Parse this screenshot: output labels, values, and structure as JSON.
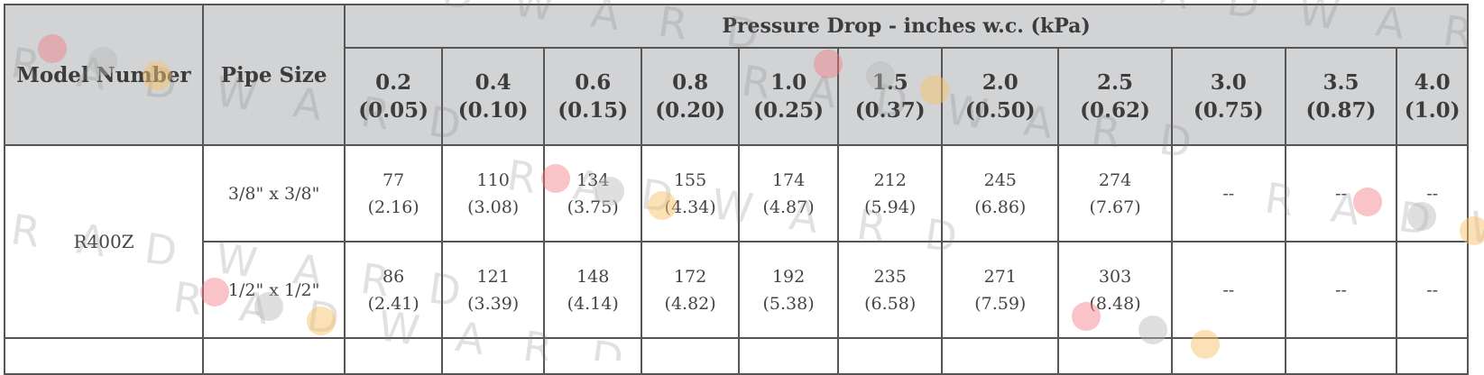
{
  "table": {
    "model_header": "Model Number",
    "pipe_header": "Pipe Size",
    "group_title": "Pressure Drop - inches w.c. (kPa)",
    "columns": [
      {
        "in": "0.2",
        "kpa": "(0.05)"
      },
      {
        "in": "0.4",
        "kpa": "(0.10)"
      },
      {
        "in": "0.6",
        "kpa": "(0.15)"
      },
      {
        "in": "0.8",
        "kpa": "(0.20)"
      },
      {
        "in": "1.0",
        "kpa": "(0.25)"
      },
      {
        "in": "1.5",
        "kpa": "(0.37)"
      },
      {
        "in": "2.0",
        "kpa": "(0.50)"
      },
      {
        "in": "2.5",
        "kpa": "(0.62)"
      },
      {
        "in": "3.0",
        "kpa": "(0.75)"
      },
      {
        "in": "3.5",
        "kpa": "(0.87)"
      },
      {
        "in": "4.0",
        "kpa": "(1.0)"
      }
    ],
    "rows": [
      {
        "model": "R400Z",
        "pipe": "3/8\" x 3/8\"",
        "cells": [
          {
            "a": "77",
            "b": "(2.16)"
          },
          {
            "a": "110",
            "b": "(3.08)"
          },
          {
            "a": "134",
            "b": "(3.75)"
          },
          {
            "a": "155",
            "b": "(4.34)"
          },
          {
            "a": "174",
            "b": "(4.87)"
          },
          {
            "a": "212",
            "b": "(5.94)"
          },
          {
            "a": "245",
            "b": "(6.86)"
          },
          {
            "a": "274",
            "b": "(7.67)"
          },
          {
            "a": "--",
            "b": ""
          },
          {
            "a": "--",
            "b": ""
          },
          {
            "a": "--",
            "b": ""
          }
        ]
      },
      {
        "model": "",
        "pipe": "1/2\" x 1/2\"",
        "cells": [
          {
            "a": "86",
            "b": "(2.41)"
          },
          {
            "a": "121",
            "b": "(3.39)"
          },
          {
            "a": "148",
            "b": "(4.14)"
          },
          {
            "a": "172",
            "b": "(4.82)"
          },
          {
            "a": "192",
            "b": "(5.38)"
          },
          {
            "a": "235",
            "b": "(6.58)"
          },
          {
            "a": "271",
            "b": "(7.59)"
          },
          {
            "a": "303",
            "b": "(8.48)"
          },
          {
            "a": "--",
            "b": ""
          },
          {
            "a": "--",
            "b": ""
          },
          {
            "a": "--",
            "b": ""
          }
        ]
      }
    ]
  },
  "watermark": {
    "text": "RADWARD",
    "colors": {
      "red_dot": "#f27a86",
      "grey_dot": "#b8b8b8",
      "yellow_dot": "#f7c46c"
    }
  }
}
